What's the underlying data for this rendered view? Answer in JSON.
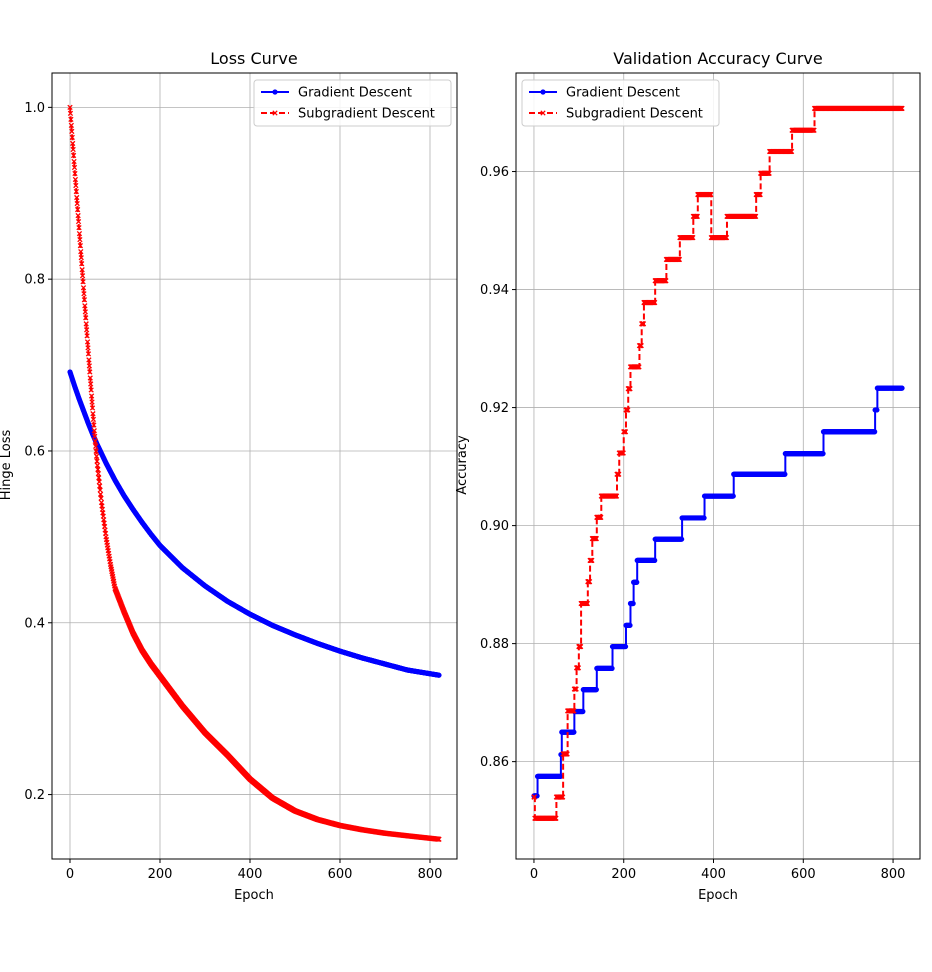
{
  "figure": {
    "background": "#ffffff"
  },
  "chart_data": [
    {
      "type": "line",
      "title": "Loss Curve",
      "xlabel": "Epoch",
      "ylabel": "Hinge Loss",
      "xlim": [
        -40,
        860
      ],
      "ylim": [
        0.125,
        1.04
      ],
      "xticks": [
        0,
        200,
        400,
        600,
        800
      ],
      "yticks": [
        0.2,
        0.4,
        0.6,
        0.8,
        1.0
      ],
      "xtick_labels": [
        "0",
        "200",
        "400",
        "600",
        "800"
      ],
      "ytick_labels": [
        "0.2",
        "0.4",
        "0.6",
        "0.8",
        "1.0"
      ],
      "grid": true,
      "legend_position": "top-right",
      "series": [
        {
          "name": "Gradient Descent",
          "color": "#0000ff",
          "linestyle": "solid",
          "marker": "circle",
          "step": false,
          "points": [
            [
              0,
              0.692
            ],
            [
              10,
              0.676
            ],
            [
              20,
              0.661
            ],
            [
              30,
              0.647
            ],
            [
              40,
              0.633
            ],
            [
              50,
              0.62
            ],
            [
              60,
              0.608
            ],
            [
              80,
              0.586
            ],
            [
              100,
              0.566
            ],
            [
              120,
              0.548
            ],
            [
              140,
              0.532
            ],
            [
              160,
              0.517
            ],
            [
              180,
              0.503
            ],
            [
              200,
              0.49
            ],
            [
              250,
              0.464
            ],
            [
              300,
              0.443
            ],
            [
              350,
              0.425
            ],
            [
              400,
              0.41
            ],
            [
              450,
              0.397
            ],
            [
              500,
              0.386
            ],
            [
              550,
              0.376
            ],
            [
              600,
              0.367
            ],
            [
              650,
              0.359
            ],
            [
              700,
              0.352
            ],
            [
              750,
              0.345
            ],
            [
              820,
              0.339
            ]
          ]
        },
        {
          "name": "Subgradient Descent",
          "color": "#ff0000",
          "linestyle": "dashed",
          "marker": "x",
          "step": false,
          "points": [
            [
              0,
              1.0
            ],
            [
              5,
              0.965
            ],
            [
              10,
              0.93
            ],
            [
              15,
              0.895
            ],
            [
              20,
              0.86
            ],
            [
              25,
              0.825
            ],
            [
              30,
              0.79
            ],
            [
              35,
              0.755
            ],
            [
              40,
              0.72
            ],
            [
              45,
              0.685
            ],
            [
              50,
              0.65
            ],
            [
              55,
              0.617
            ],
            [
              60,
              0.588
            ],
            [
              70,
              0.54
            ],
            [
              80,
              0.5
            ],
            [
              90,
              0.468
            ],
            [
              100,
              0.44
            ],
            [
              120,
              0.413
            ],
            [
              140,
              0.388
            ],
            [
              160,
              0.368
            ],
            [
              180,
              0.352
            ],
            [
              200,
              0.338
            ],
            [
              250,
              0.303
            ],
            [
              300,
              0.272
            ],
            [
              350,
              0.246
            ],
            [
              400,
              0.218
            ],
            [
              450,
              0.196
            ],
            [
              500,
              0.181
            ],
            [
              550,
              0.171
            ],
            [
              600,
              0.164
            ],
            [
              650,
              0.159
            ],
            [
              700,
              0.155
            ],
            [
              750,
              0.152
            ],
            [
              820,
              0.148
            ]
          ]
        }
      ]
    },
    {
      "type": "line",
      "title": "Validation Accuracy Curve",
      "xlabel": "Epoch",
      "ylabel": "Accuracy",
      "xlim": [
        -40,
        860
      ],
      "ylim": [
        0.8435,
        0.9767
      ],
      "xticks": [
        0,
        200,
        400,
        600,
        800
      ],
      "yticks": [
        0.86,
        0.88,
        0.9,
        0.92,
        0.94,
        0.96
      ],
      "xtick_labels": [
        "0",
        "200",
        "400",
        "600",
        "800"
      ],
      "ytick_labels": [
        "0.86",
        "0.88",
        "0.90",
        "0.92",
        "0.94",
        "0.96"
      ],
      "grid": true,
      "legend_position": "top-left",
      "series": [
        {
          "name": "Gradient Descent",
          "color": "#0000ff",
          "linestyle": "solid",
          "marker": "circle",
          "step": true,
          "points": [
            [
              0,
              0.8542
            ],
            [
              8,
              0.8575
            ],
            [
              60,
              0.8612
            ],
            [
              62,
              0.865
            ],
            [
              90,
              0.8685
            ],
            [
              110,
              0.8722
            ],
            [
              140,
              0.8758
            ],
            [
              175,
              0.8795
            ],
            [
              205,
              0.8831
            ],
            [
              215,
              0.8868
            ],
            [
              222,
              0.8904
            ],
            [
              230,
              0.8941
            ],
            [
              270,
              0.8977
            ],
            [
              330,
              0.9013
            ],
            [
              380,
              0.905
            ],
            [
              445,
              0.9087
            ],
            [
              560,
              0.9122
            ],
            [
              645,
              0.9159
            ],
            [
              760,
              0.9196
            ],
            [
              765,
              0.9233
            ],
            [
              820,
              0.9233
            ]
          ]
        },
        {
          "name": "Subgradient Descent",
          "color": "#ff0000",
          "linestyle": "dashed",
          "marker": "x",
          "step": true,
          "points": [
            [
              0,
              0.854
            ],
            [
              2,
              0.8504
            ],
            [
              50,
              0.854
            ],
            [
              65,
              0.8613
            ],
            [
              75,
              0.8686
            ],
            [
              90,
              0.8723
            ],
            [
              95,
              0.8759
            ],
            [
              100,
              0.8795
            ],
            [
              105,
              0.8868
            ],
            [
              120,
              0.8905
            ],
            [
              125,
              0.8941
            ],
            [
              130,
              0.8978
            ],
            [
              140,
              0.9014
            ],
            [
              150,
              0.905
            ],
            [
              185,
              0.9087
            ],
            [
              190,
              0.9123
            ],
            [
              200,
              0.9159
            ],
            [
              205,
              0.9196
            ],
            [
              210,
              0.9232
            ],
            [
              215,
              0.9269
            ],
            [
              235,
              0.9305
            ],
            [
              240,
              0.9342
            ],
            [
              245,
              0.9378
            ],
            [
              270,
              0.9415
            ],
            [
              295,
              0.9451
            ],
            [
              325,
              0.9488
            ],
            [
              355,
              0.9524
            ],
            [
              365,
              0.9561
            ],
            [
              395,
              0.9488
            ],
            [
              430,
              0.9524
            ],
            [
              495,
              0.9561
            ],
            [
              505,
              0.9597
            ],
            [
              525,
              0.9634
            ],
            [
              575,
              0.967
            ],
            [
              625,
              0.9707
            ],
            [
              820,
              0.9707
            ]
          ]
        }
      ]
    }
  ]
}
